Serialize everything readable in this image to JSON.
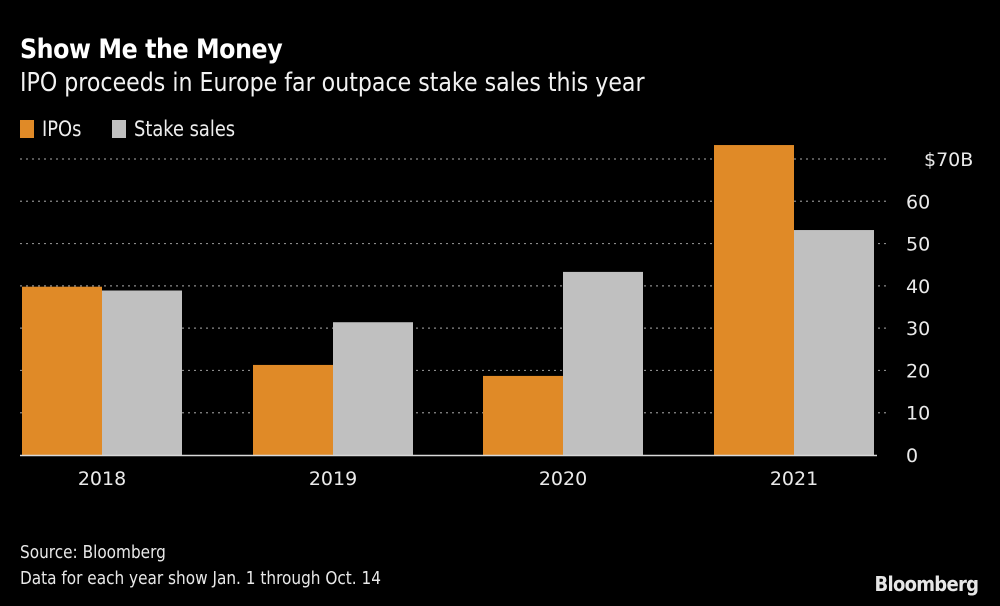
{
  "title": "Show Me the Money",
  "subtitle": "IPO proceeds in Europe far outpace stake sales this year",
  "legend": [
    {
      "label": "IPOs",
      "color": "#e08a27"
    },
    {
      "label": "Stake sales",
      "color": "#c0c0c0"
    }
  ],
  "footer": {
    "source": "Source: Bloomberg",
    "note": "Data for each year show Jan. 1 through Oct. 14"
  },
  "brand": "Bloomberg",
  "chart_data": {
    "type": "bar",
    "title": "Show Me the Money",
    "subtitle": "IPO proceeds in Europe far outpace stake sales this year",
    "categories": [
      "2018",
      "2019",
      "2020",
      "2021"
    ],
    "series": [
      {
        "name": "IPOs",
        "color": "#e08a27",
        "values": [
          39.8,
          21.3,
          18.7,
          73.3
        ]
      },
      {
        "name": "Stake sales",
        "color": "#c0c0c0",
        "values": [
          38.9,
          31.4,
          43.3,
          53.2
        ]
      }
    ],
    "xlabel": "",
    "ylabel": "",
    "ylim": [
      0,
      70
    ],
    "yticks": [
      0,
      10,
      20,
      30,
      40,
      50,
      60,
      70
    ],
    "ytick_labels": [
      "0",
      "10",
      "20",
      "30",
      "40",
      "50",
      "60",
      "$70B"
    ],
    "y_axis_side": "right",
    "grid": true,
    "legend_position": "top-left"
  }
}
